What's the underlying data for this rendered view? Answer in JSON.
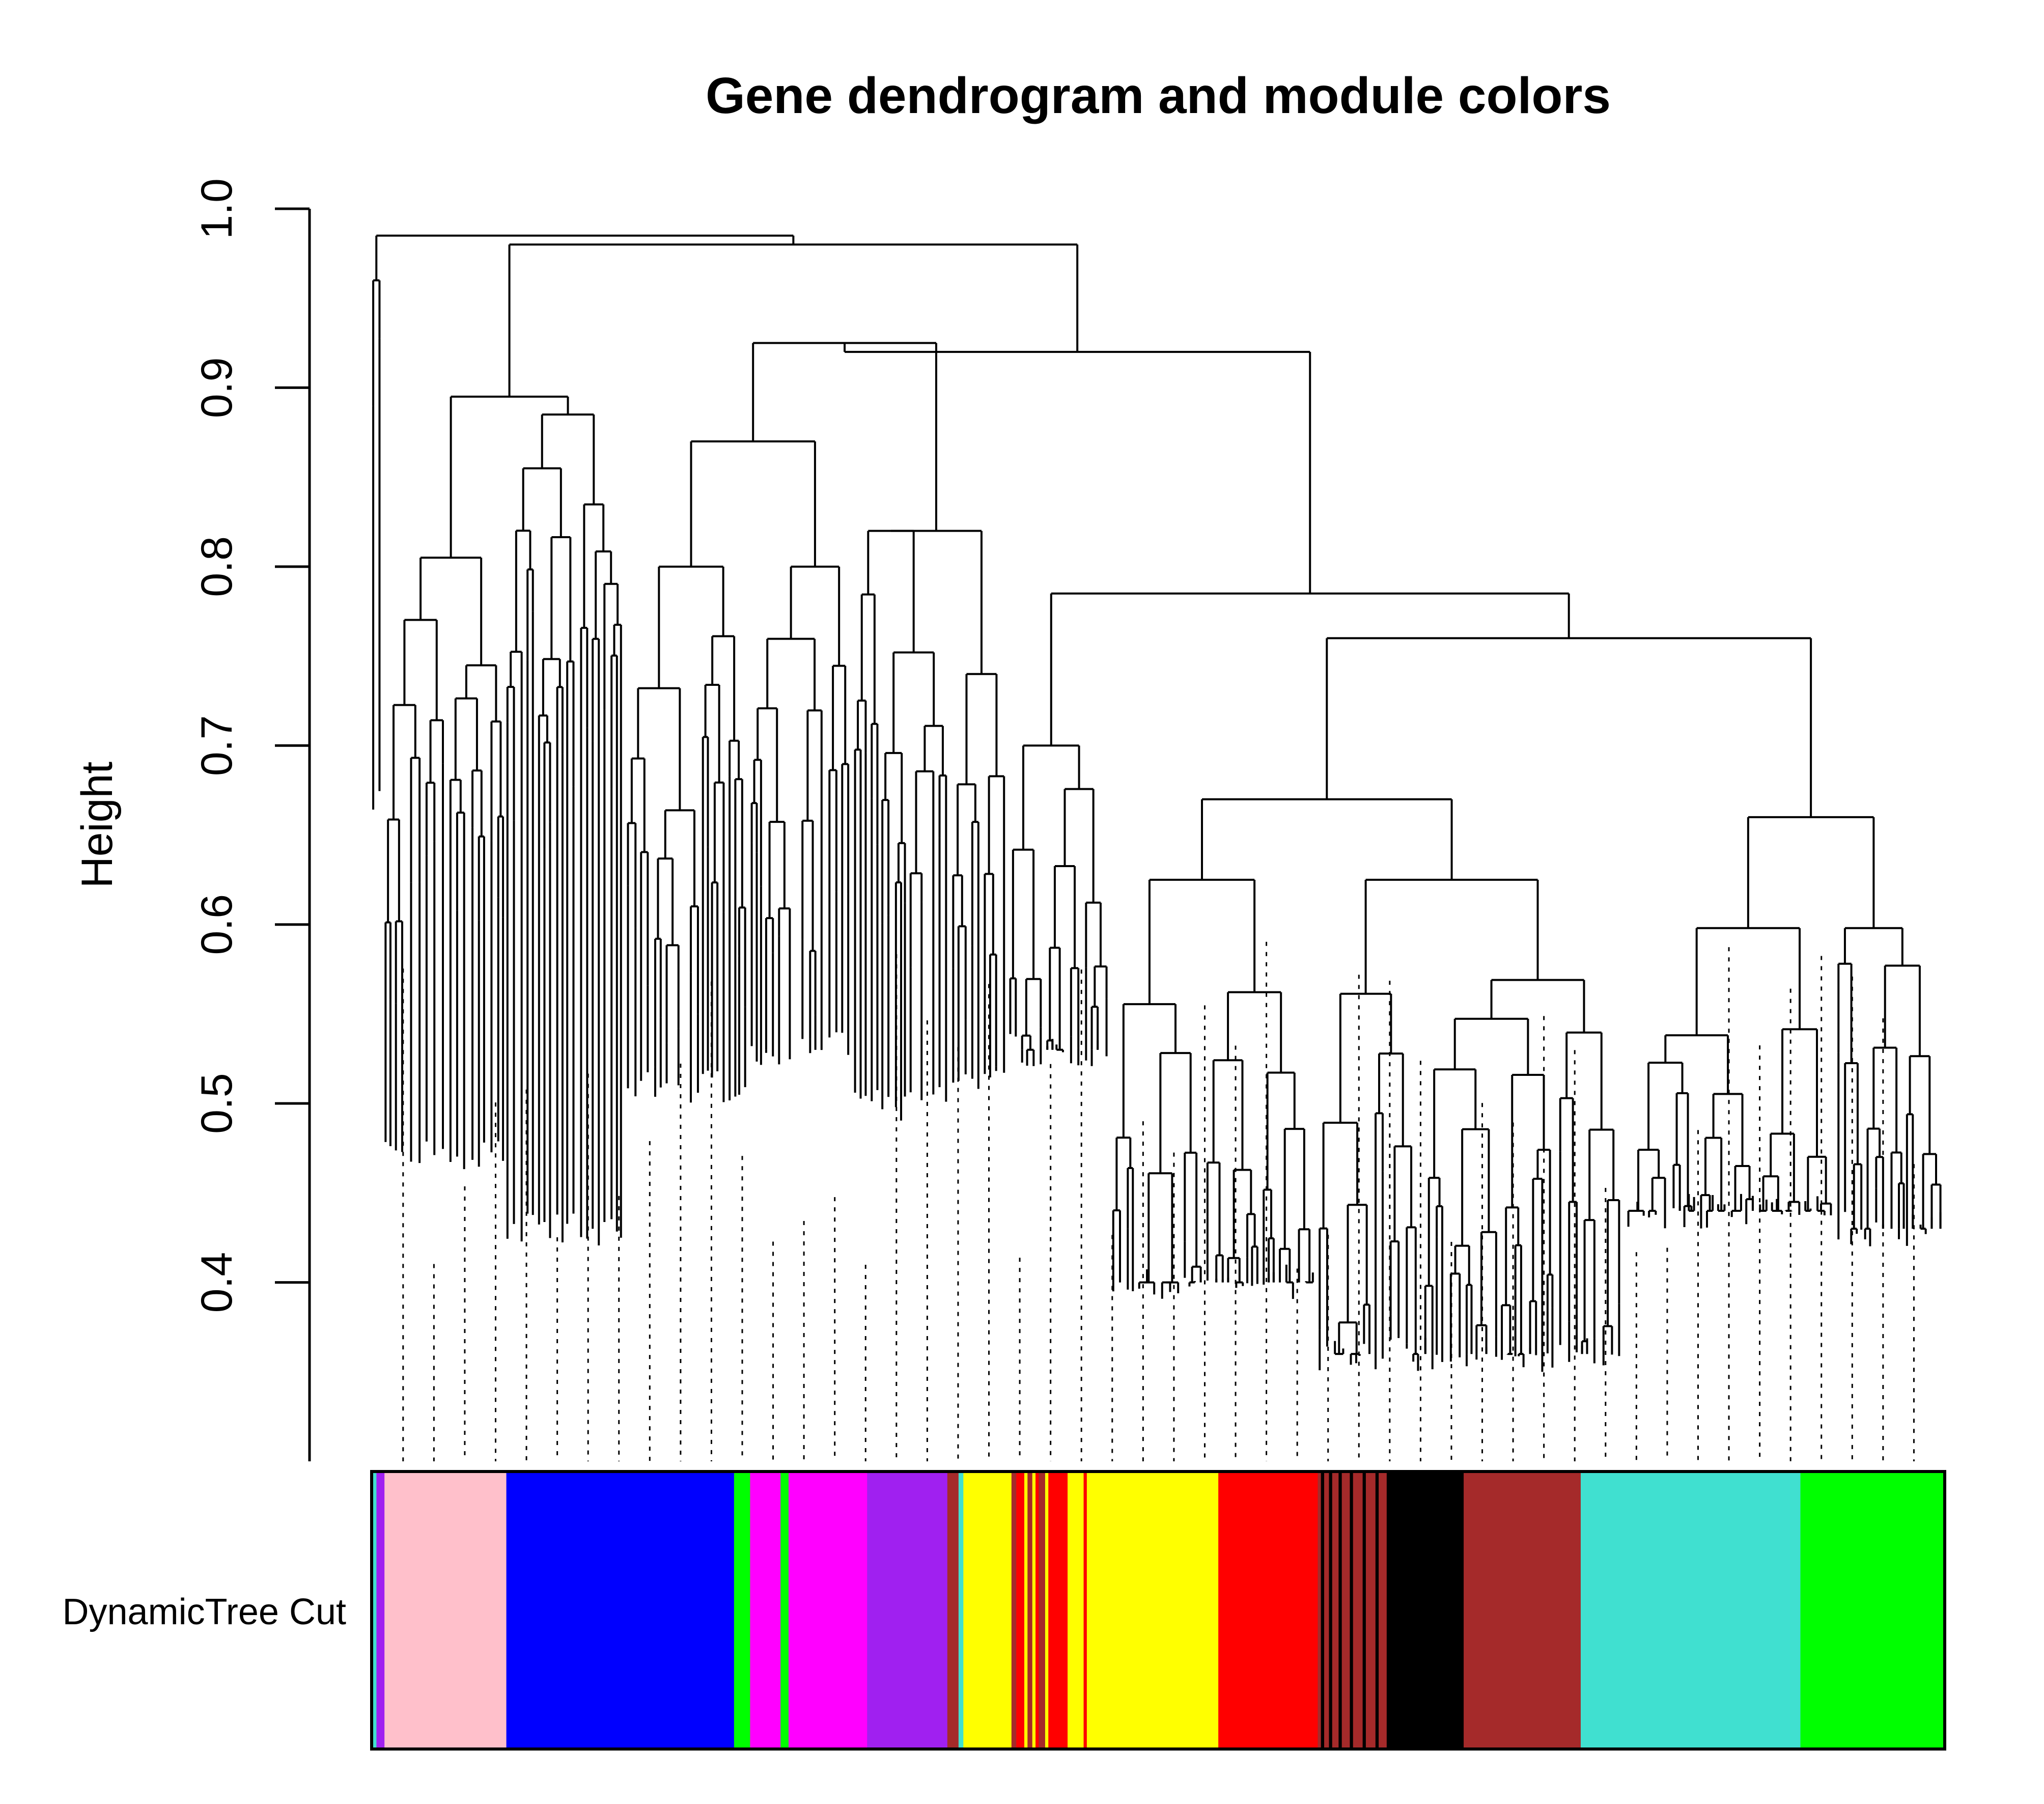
{
  "chart_data": {
    "type": "dendrogram",
    "title": "Gene dendrogram and module colors",
    "ylabel": "Height",
    "xlabel": "",
    "ylim": [
      0.3,
      1.0
    ],
    "y_ticks": [
      0.4,
      0.5,
      0.6,
      0.7,
      0.8,
      0.9,
      1.0
    ],
    "y_tick_labels": [
      "0.4",
      "0.5",
      "0.6",
      "0.7",
      "0.8",
      "0.9",
      "1.0"
    ],
    "color_row_label": "DynamicTree Cut",
    "module_colors": {
      "turquoise": "#40E0D0",
      "purple": "#A020F0",
      "pink": "#FFC0CB",
      "blue": "#0000FF",
      "green": "#00FF00",
      "magenta": "#FF00FF",
      "brown": "#A52A2A",
      "yellow": "#FFFF00",
      "red": "#FF0000",
      "black": "#000000"
    },
    "module_segments": [
      {
        "module": "turquoise",
        "fraction": 0.003
      },
      {
        "module": "purple",
        "fraction": 0.005
      },
      {
        "module": "pink",
        "fraction": 0.076
      },
      {
        "module": "blue",
        "fraction": 0.142
      },
      {
        "module": "green",
        "fraction": 0.01
      },
      {
        "module": "magenta",
        "fraction": 0.019
      },
      {
        "module": "green",
        "fraction": 0.005
      },
      {
        "module": "magenta",
        "fraction": 0.049
      },
      {
        "module": "purple",
        "fraction": 0.05
      },
      {
        "module": "brown",
        "fraction": 0.007
      },
      {
        "module": "turquoise",
        "fraction": 0.003
      },
      {
        "module": "yellow",
        "fraction": 0.03
      },
      {
        "module": "brown",
        "fraction": 0.003
      },
      {
        "module": "red",
        "fraction": 0.005
      },
      {
        "module": "yellow",
        "fraction": 0.002
      },
      {
        "module": "brown",
        "fraction": 0.003
      },
      {
        "module": "yellow",
        "fraction": 0.002
      },
      {
        "module": "red",
        "fraction": 0.002
      },
      {
        "module": "brown",
        "fraction": 0.004
      },
      {
        "module": "yellow",
        "fraction": 0.002
      },
      {
        "module": "red",
        "fraction": 0.012
      },
      {
        "module": "yellow",
        "fraction": 0.01
      },
      {
        "module": "red",
        "fraction": 0.002
      },
      {
        "module": "yellow",
        "fraction": 0.014
      },
      {
        "module": "yellow",
        "fraction": 0.068
      },
      {
        "module": "red",
        "fraction": 0.062
      },
      {
        "module": "brown",
        "fraction": 0.002
      },
      {
        "module": "black",
        "fraction": 0.002
      },
      {
        "module": "brown",
        "fraction": 0.003
      },
      {
        "module": "black",
        "fraction": 0.002
      },
      {
        "module": "brown",
        "fraction": 0.004
      },
      {
        "module": "black",
        "fraction": 0.002
      },
      {
        "module": "brown",
        "fraction": 0.005
      },
      {
        "module": "black",
        "fraction": 0.002
      },
      {
        "module": "brown",
        "fraction": 0.006
      },
      {
        "module": "black",
        "fraction": 0.002
      },
      {
        "module": "brown",
        "fraction": 0.006
      },
      {
        "module": "black",
        "fraction": 0.002
      },
      {
        "module": "brown",
        "fraction": 0.005
      },
      {
        "module": "black",
        "fraction": 0.048
      },
      {
        "module": "brown",
        "fraction": 0.073
      },
      {
        "module": "turquoise",
        "fraction": 0.137
      },
      {
        "module": "green",
        "fraction": 0.09
      }
    ],
    "dendrogram": {
      "merges": [
        {
          "x": 0.003,
          "y": 0.96,
          "children": "leaf",
          "x_end": 0.01,
          "y_end": 0.72
        },
        {
          "x": 0.003,
          "y": 0.985,
          "span": [
            0.003,
            0.205
          ]
        },
        {
          "x": 0.078,
          "y": 0.985,
          "span": [
            0.078,
            0.328
          ]
        },
        {
          "x": 0.328,
          "y": 0.98,
          "span": [
            0.2,
            0.328
          ]
        },
        {
          "x": 0.2,
          "y": 0.895,
          "span": [
            0.025,
            0.135
          ]
        },
        {
          "x": 0.27,
          "y": 0.925,
          "span": [
            0.262,
            0.425
          ]
        },
        {
          "x": 0.425,
          "y": 0.925,
          "span": [
            0.36,
            0.57
          ]
        },
        {
          "x": 0.57,
          "y": 0.88,
          "span": [
            0.368,
            0.614
          ]
        },
        {
          "x": 0.614,
          "y": 0.783,
          "span": [
            0.398,
            0.862
          ]
        },
        {
          "x": 0.862,
          "y": 0.76,
          "span": [
            0.794,
            0.93
          ]
        },
        {
          "x": 0.93,
          "y": 0.66,
          "span": [
            0.778,
            0.978
          ]
        }
      ],
      "leaf_height_range": [
        0.35,
        0.74
      ],
      "top_height": 0.985
    }
  }
}
